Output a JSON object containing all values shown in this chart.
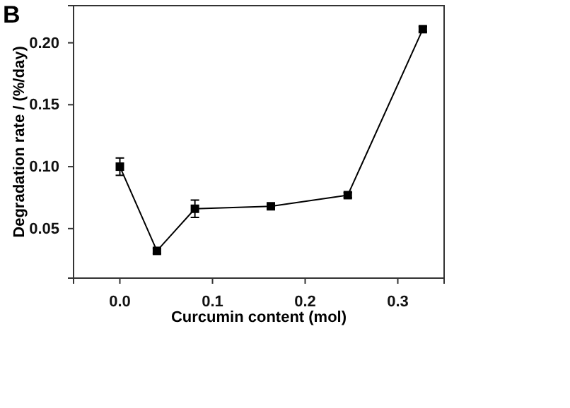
{
  "chart_data": {
    "type": "line",
    "xlabel": "Curcumin content (mol)",
    "ylabel": "Degradation rate / (%/day)",
    "annotations": [
      "B"
    ],
    "x": [
      0.0,
      0.04,
      0.081,
      0.163,
      0.246,
      0.327
    ],
    "series": [
      {
        "color": "#000000",
        "values": [
          0.1,
          0.032,
          0.066,
          0.068,
          0.077,
          0.211
        ],
        "errors": [
          0.007,
          0.002,
          0.007,
          0.002,
          0.002,
          0.002
        ]
      }
    ],
    "xlim": [
      -0.05,
      0.35
    ],
    "xticks": [
      {
        "value": 0,
        "label": "0.0"
      },
      0.1,
      0.2,
      0.3
    ],
    "ylim": [
      0.01,
      0.23
    ],
    "yticks": [
      0.05,
      {
        "value": 0.1,
        "label": "0.10"
      },
      0.15,
      {
        "value": 0.2,
        "label": "0.20"
      }
    ],
    "marker": "square",
    "line_style": "solid",
    "grid": false
  }
}
